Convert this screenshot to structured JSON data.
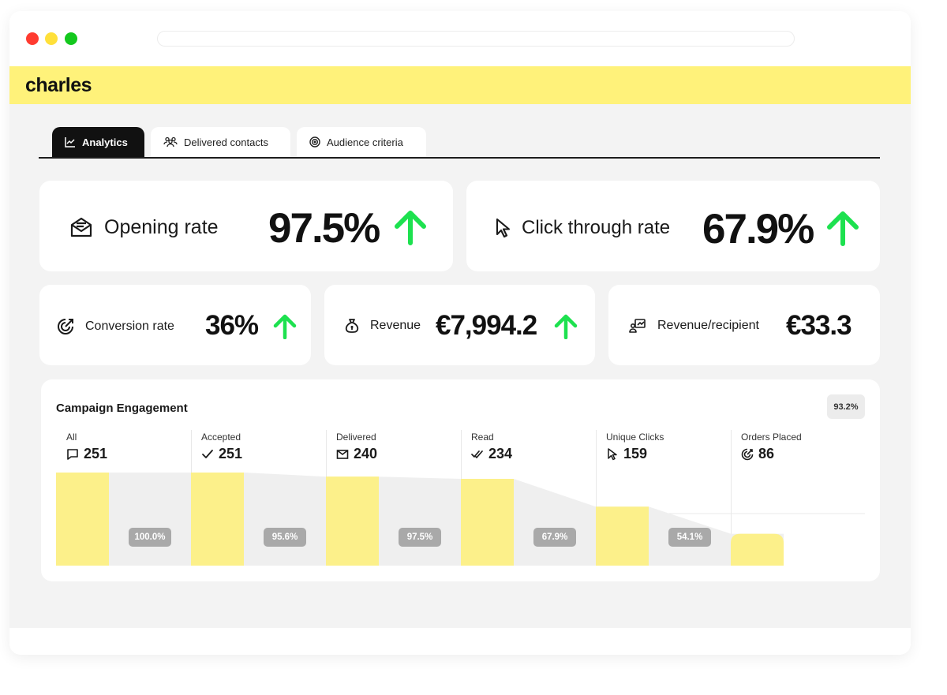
{
  "brand": {
    "logo": "charles"
  },
  "tabs": [
    {
      "label": "Analytics",
      "icon": "line-chart-icon",
      "active": true
    },
    {
      "label": "Delivered contacts",
      "icon": "contacts-icon",
      "active": false
    },
    {
      "label": "Audience criteria",
      "icon": "target-icon",
      "active": false
    }
  ],
  "kpis": {
    "opening_rate": {
      "label": "Opening rate",
      "value": "97.5%",
      "icon": "open-envelope-icon",
      "trend": "up"
    },
    "click_through_rate": {
      "label": "Click through rate",
      "value": "67.9%",
      "icon": "cursor-icon",
      "trend": "up"
    },
    "conversion_rate": {
      "label": "Conversion rate",
      "value": "36%",
      "icon": "target-click-icon",
      "trend": "up"
    },
    "revenue": {
      "label": "Revenue",
      "value": "€7,994.2",
      "icon": "money-bag-icon",
      "trend": "up"
    },
    "revenue_per_recipient": {
      "label": "Revenue/recipient",
      "value": "€33.3",
      "icon": "user-revenue-icon"
    }
  },
  "colors": {
    "accent": "#fff27a",
    "bar": "#fcf08a",
    "trend_up": "#1de14f",
    "dark": "#111111"
  },
  "engagement": {
    "title": "Campaign Engagement",
    "badge": "93.2%",
    "chart_data": {
      "type": "bar",
      "categories": [
        "All",
        "Accepted",
        "Delivered",
        "Read",
        "Unique Clicks",
        "Orders Placed"
      ],
      "values": [
        251,
        251,
        240,
        234,
        159,
        86
      ],
      "category_icons": [
        "chat-icon",
        "check-icon",
        "envelope-icon",
        "double-check-icon",
        "cursor-icon",
        "target-click-icon"
      ],
      "step_percentages": [
        "100.0%",
        "95.6%",
        "97.5%",
        "67.9%",
        "54.1%"
      ],
      "ylim": [
        0,
        251
      ]
    }
  }
}
